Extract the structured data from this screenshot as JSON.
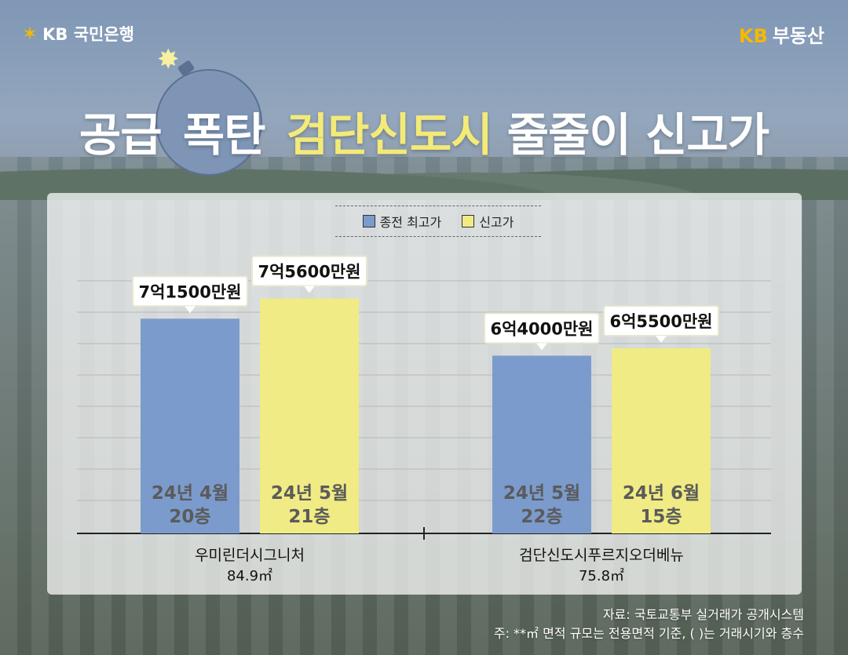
{
  "brand": {
    "left_logo": "KB 국민은행",
    "right_kb": "KB",
    "right_text": "부동산"
  },
  "title": {
    "part1": "공급",
    "part2": "폭탄",
    "highlight": "검단신도시",
    "part3": "줄줄이 신고가"
  },
  "legend": [
    {
      "label": "종전 최고가",
      "color": "#7b9bcc"
    },
    {
      "label": "신고가",
      "color": "#f0eb84"
    }
  ],
  "chart_data": {
    "type": "bar",
    "series": [
      {
        "name": "종전 최고가",
        "color": "#7b9bcc"
      },
      {
        "name": "신고가",
        "color": "#f0eb84"
      }
    ],
    "groups": [
      {
        "name": "우미린더시그니처",
        "area": "84.9㎡",
        "bars": [
          {
            "series": "종전 최고가",
            "value": 71500,
            "label": "7억1500만원",
            "date": "24년 4월",
            "floor": "20층"
          },
          {
            "series": "신고가",
            "value": 75600,
            "label": "7억5600만원",
            "date": "24년 5월",
            "floor": "21층"
          }
        ]
      },
      {
        "name": "검단신도시푸르지오더베뉴",
        "area": "75.8㎡",
        "bars": [
          {
            "series": "종전 최고가",
            "value": 64000,
            "label": "6억4000만원",
            "date": "24년 5월",
            "floor": "22층"
          },
          {
            "series": "신고가",
            "value": 65500,
            "label": "6억5500만원",
            "date": "24년 6월",
            "floor": "15층"
          }
        ]
      }
    ]
  },
  "source": {
    "line1": "자료: 국토교통부 실거래가 공개시스템",
    "line2": "주: **㎡ 면적 규모는 전용면적 기준, ( )는 거래시기와 층수"
  }
}
